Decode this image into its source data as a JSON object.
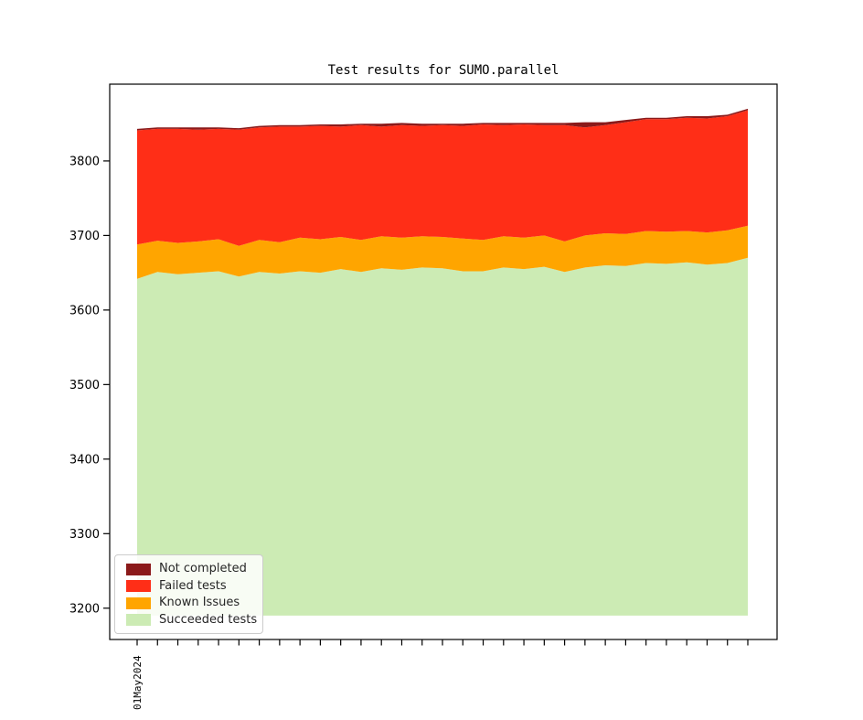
{
  "figure": {
    "title": "Test results for SUMO.parallel",
    "background_color": "#ffffff"
  },
  "legend": {
    "position": "lower left",
    "items": [
      {
        "label": "Not completed",
        "color": "#8b1a1a"
      },
      {
        "label": "Failed tests",
        "color": "#ff2e17"
      },
      {
        "label": "Known Issues",
        "color": "#ffa500"
      },
      {
        "label": "Succeeded tests",
        "color": "#ccebb4"
      }
    ]
  },
  "chart_data": {
    "type": "area",
    "stacked": true,
    "title": "Test results for SUMO.parallel",
    "xlabel": "",
    "ylabel": "",
    "grid": false,
    "legend_position": "lower left",
    "x_tick_count": 31,
    "x_first_tick_label": "01May2024",
    "x": [
      1,
      2,
      3,
      4,
      5,
      6,
      7,
      8,
      9,
      10,
      11,
      12,
      13,
      14,
      15,
      16,
      17,
      18,
      19,
      20,
      21,
      22,
      23,
      24,
      25,
      26,
      27,
      28,
      29,
      30,
      31
    ],
    "yticks": [
      3200,
      3300,
      3400,
      3500,
      3600,
      3700,
      3800
    ],
    "ylim": [
      3158,
      3903
    ],
    "area_baseline_value": 3190,
    "series": [
      {
        "name": "Succeeded tests",
        "color": "#ccebb4",
        "absolute": true,
        "values": [
          3642,
          3651,
          3648,
          3650,
          3652,
          3645,
          3651,
          3649,
          3652,
          3650,
          3655,
          3651,
          3656,
          3654,
          3657,
          3656,
          3652,
          3652,
          3657,
          3655,
          3658,
          3651,
          3657,
          3660,
          3659,
          3663,
          3662,
          3664,
          3661,
          3663,
          3670
        ]
      },
      {
        "name": "Known Issues",
        "color": "#ffa500",
        "absolute": false,
        "values": [
          46,
          42,
          42,
          42,
          43,
          41,
          43,
          42,
          45,
          45,
          43,
          43,
          43,
          43,
          42,
          42,
          44,
          42,
          42,
          42,
          42,
          41,
          43,
          43,
          43,
          43,
          43,
          42,
          43,
          44,
          43
        ]
      },
      {
        "name": "Failed tests",
        "color": "#ff2e17",
        "absolute": false,
        "values": [
          153,
          150,
          153,
          150,
          148,
          156,
          151,
          155,
          149,
          152,
          148,
          154,
          147,
          151,
          148,
          150,
          151,
          155,
          149,
          152,
          148,
          156,
          145,
          145,
          150,
          150,
          151,
          152,
          153,
          153,
          155
        ]
      },
      {
        "name": "Not completed",
        "color": "#8b1a1a",
        "absolute": false,
        "values": [
          2,
          2,
          2,
          3,
          2,
          2,
          2,
          2,
          2,
          2,
          3,
          2,
          4,
          3,
          3,
          2,
          3,
          2,
          3,
          2,
          3,
          3,
          7,
          4,
          3,
          2,
          2,
          2,
          3,
          2,
          2
        ]
      }
    ]
  }
}
